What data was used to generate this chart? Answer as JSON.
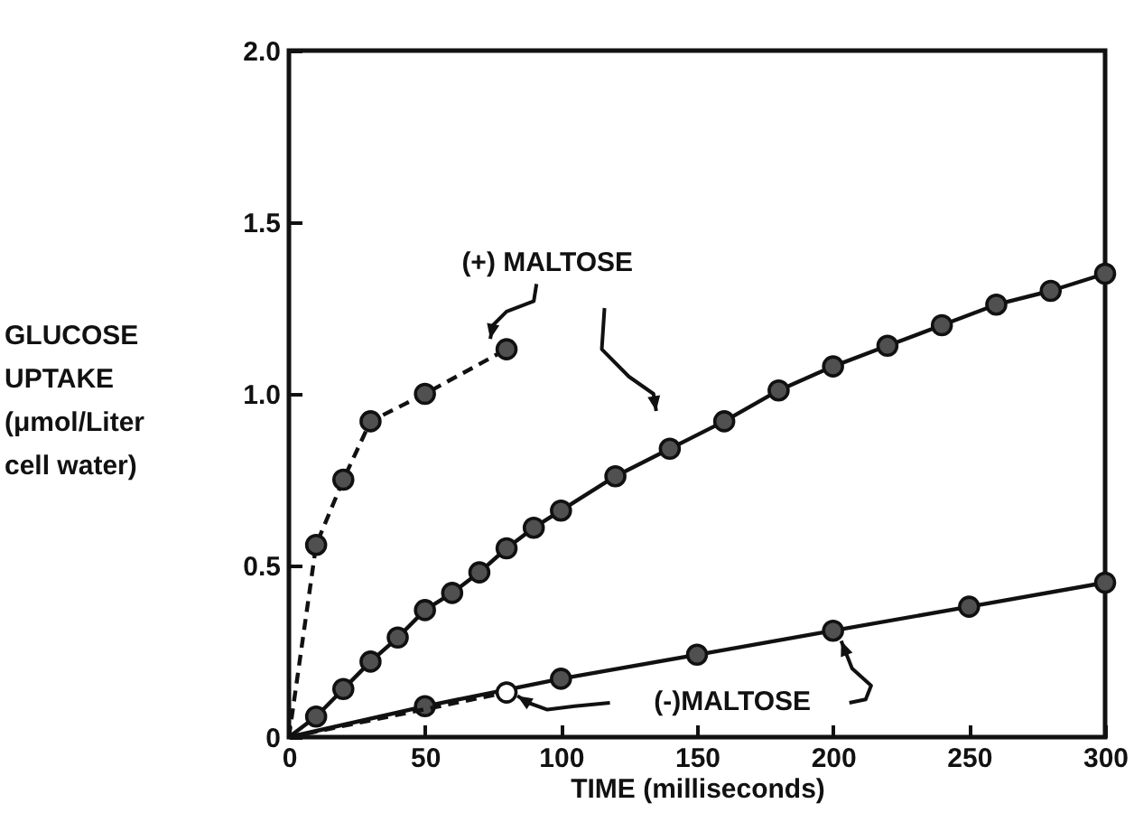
{
  "chart_data": {
    "type": "line",
    "xlabel": "TIME (milliseconds)",
    "ylabel": "GLUCOSE\nUPTAKE\n(μmol/Liter\ncell water)",
    "xlim": [
      0,
      300
    ],
    "xticks": [
      0,
      50,
      100,
      150,
      200,
      250,
      300
    ],
    "ylim": [
      0,
      2.0
    ],
    "yticks": [
      0,
      {
        "value": 0.5,
        "label": "0.5"
      },
      {
        "value": 1,
        "label": "1.0"
      },
      {
        "value": 1.5,
        "label": "1.5"
      },
      {
        "value": 2,
        "label": "2.0"
      }
    ],
    "marker": "circle",
    "grid": false,
    "series": [
      {
        "color": "#505050",
        "line_style": "dashed",
        "x": [
          0,
          10,
          20,
          30,
          50,
          80
        ],
        "values": [
          0,
          0.56,
          0.75,
          0.92,
          1.0,
          1.13
        ]
      },
      {
        "color": "#505050",
        "line_style": "solid",
        "x": [
          0,
          10,
          20,
          30,
          40,
          50,
          60,
          70,
          80,
          90,
          100,
          120,
          140,
          160,
          180,
          200,
          220,
          240,
          260,
          280,
          300
        ],
        "values": [
          0,
          0.06,
          0.14,
          0.22,
          0.29,
          0.37,
          0.42,
          0.48,
          0.55,
          0.61,
          0.66,
          0.76,
          0.84,
          0.92,
          1.01,
          1.08,
          1.14,
          1.2,
          1.26,
          1.3,
          1.35
        ]
      },
      {
        "color": "#505050",
        "line_style": "solid",
        "x": [
          0,
          50,
          100,
          150,
          200,
          250,
          300
        ],
        "values": [
          0,
          0.09,
          0.17,
          0.24,
          0.31,
          0.38,
          0.45
        ]
      },
      {
        "color": "#111111",
        "line_style": "dashed",
        "marker": "none",
        "x": [
          0,
          80
        ],
        "values": [
          0,
          0.13
        ]
      },
      {
        "type": "scatter",
        "color": "#ffffff",
        "x": [
          80
        ],
        "values": [
          0.13
        ]
      }
    ],
    "annotations": [
      "(+) MALTOSE",
      "(-)MALTOSE"
    ]
  }
}
